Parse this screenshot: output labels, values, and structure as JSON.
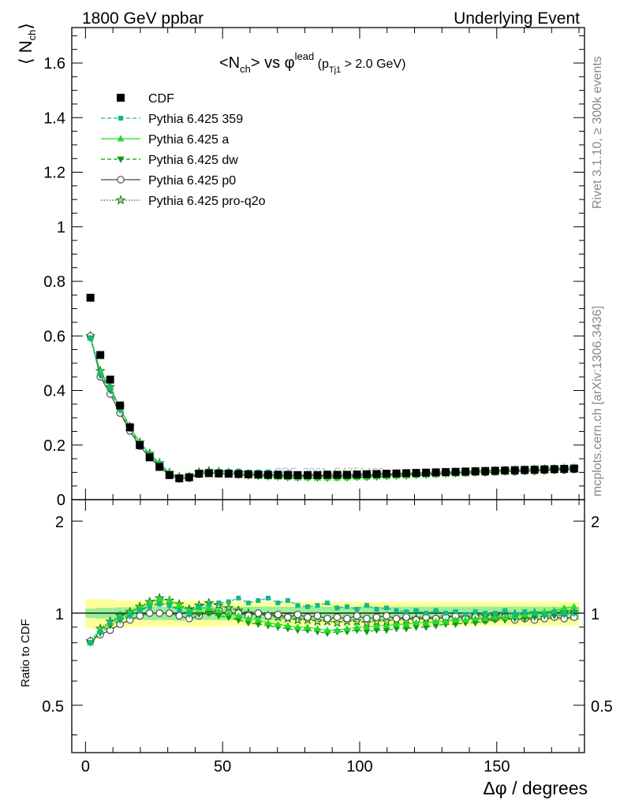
{
  "header": {
    "left": "1800 GeV ppbar",
    "right": "Underlying Event"
  },
  "side_text": {
    "rivet": "Rivet 3.1.10, ≥ 300k events",
    "mcplots": "mcplots.cern.ch [arXiv:1306.3436]"
  },
  "watermark": "CDF_2001_S4751469",
  "chart_data": [
    {
      "type": "scatter",
      "panel": "main",
      "title_parts": {
        "a": "<N",
        "a_sub": "ch",
        "b": "> vs φ",
        "b_sup": "lead",
        "c": " (p",
        "c_sub": "Tj1",
        "d": " > 2.0 GeV)"
      },
      "ylabel_parts": {
        "open": "⟨ N",
        "sub": "ch",
        "close": "⟩"
      },
      "xlim": [
        -5,
        182
      ],
      "ylim": [
        0,
        1.73
      ],
      "yticks": [
        0,
        0.2,
        0.4,
        0.6,
        0.8,
        1,
        1.2,
        1.4,
        1.6
      ],
      "ytick_labels": [
        "0",
        "0.2",
        "0.4",
        "0.6",
        "0.8",
        "1",
        "1.2",
        "1.4",
        "1.6"
      ],
      "x": [
        1.8,
        5.4,
        9.0,
        12.6,
        16.2,
        19.8,
        23.4,
        27.0,
        30.6,
        34.2,
        37.8,
        41.4,
        45.0,
        48.6,
        52.2,
        55.8,
        59.4,
        63.0,
        66.6,
        70.2,
        73.8,
        77.4,
        81.0,
        84.6,
        88.2,
        91.8,
        95.4,
        99.0,
        102.6,
        106.2,
        109.8,
        113.4,
        117.0,
        120.6,
        124.2,
        127.8,
        131.4,
        135.0,
        138.6,
        142.2,
        145.8,
        149.4,
        153.0,
        156.6,
        160.2,
        163.8,
        167.4,
        171.0,
        174.6,
        178.2
      ],
      "series": [
        {
          "name": "CDF",
          "color": "#000000",
          "marker": "square",
          "line": "none",
          "values": [
            0.74,
            0.53,
            0.44,
            0.345,
            0.265,
            0.2,
            0.155,
            0.12,
            0.09,
            0.078,
            0.082,
            0.095,
            0.097,
            0.096,
            0.095,
            0.094,
            0.093,
            0.092,
            0.091,
            0.091,
            0.09,
            0.09,
            0.09,
            0.09,
            0.091,
            0.091,
            0.091,
            0.092,
            0.093,
            0.094,
            0.095,
            0.096,
            0.097,
            0.098,
            0.099,
            0.1,
            0.101,
            0.102,
            0.103,
            0.104,
            0.105,
            0.106,
            0.107,
            0.108,
            0.109,
            0.11,
            0.111,
            0.112,
            0.113,
            0.114
          ]
        },
        {
          "name": "Pythia 6.425 359",
          "color": "#11b88c",
          "marker": "square",
          "line": "dashed",
          "ratio": [
            0.8,
            0.87,
            0.93,
            0.96,
            0.98,
            1.02,
            1.05,
            1.07,
            1.06,
            1.02,
            1.0,
            1.05,
            1.07,
            1.08,
            1.09,
            1.12,
            1.08,
            1.1,
            1.12,
            1.08,
            1.1,
            1.06,
            1.05,
            1.06,
            1.08,
            1.04,
            1.05,
            1.03,
            1.06,
            1.03,
            1.04,
            1.02,
            1.01,
            1.02,
            1.0,
            1.02,
            1.0,
            1.01,
            0.99,
            1.01,
            1.0,
            1.0,
            1.02,
            0.99,
            1.01,
            1.0,
            0.99,
            1.01,
            1.0,
            1.0
          ]
        },
        {
          "name": "Pythia 6.425 a",
          "color": "#22dd22",
          "marker": "triangle-up",
          "line": "solid",
          "ratio": [
            0.8,
            0.88,
            0.93,
            0.97,
            1.0,
            1.04,
            1.08,
            1.11,
            1.1,
            1.06,
            1.02,
            1.04,
            1.04,
            1.02,
            1.0,
            0.98,
            0.96,
            0.95,
            0.93,
            0.92,
            0.91,
            0.9,
            0.9,
            0.89,
            0.88,
            0.88,
            0.89,
            0.9,
            0.9,
            0.91,
            0.91,
            0.92,
            0.92,
            0.93,
            0.93,
            0.94,
            0.94,
            0.95,
            0.95,
            0.96,
            0.96,
            0.97,
            0.97,
            0.98,
            0.99,
            1.0,
            1.01,
            1.02,
            1.04,
            1.05
          ]
        },
        {
          "name": "Pythia 6.425 dw",
          "color": "#119911",
          "marker": "triangle-down",
          "line": "dashed",
          "ratio": [
            0.8,
            0.86,
            0.91,
            0.95,
            0.98,
            1.02,
            1.06,
            1.08,
            1.06,
            1.03,
            0.99,
            0.99,
            1.0,
            0.98,
            0.97,
            0.95,
            0.93,
            0.92,
            0.91,
            0.9,
            0.89,
            0.88,
            0.88,
            0.87,
            0.86,
            0.87,
            0.87,
            0.88,
            0.87,
            0.88,
            0.88,
            0.89,
            0.89,
            0.9,
            0.9,
            0.91,
            0.92,
            0.92,
            0.93,
            0.93,
            0.94,
            0.95,
            0.95,
            0.96,
            0.96,
            0.97,
            0.98,
            0.98,
            0.99,
            1.0
          ]
        },
        {
          "name": "Pythia 6.425 p0",
          "color": "#444444",
          "marker": "circle-open",
          "line": "solid",
          "ratio": [
            0.81,
            0.85,
            0.88,
            0.92,
            0.95,
            0.98,
            1.0,
            1.0,
            1.0,
            0.98,
            0.96,
            0.98,
            1.01,
            1.02,
            1.0,
            1.0,
            0.98,
            1.0,
            0.98,
            0.99,
            0.97,
            0.99,
            0.97,
            0.98,
            0.96,
            0.97,
            0.96,
            0.98,
            0.96,
            0.97,
            0.98,
            0.96,
            0.97,
            0.95,
            0.97,
            0.96,
            0.97,
            0.98,
            0.96,
            0.97,
            0.95,
            0.96,
            0.97,
            0.95,
            0.96,
            0.95,
            0.96,
            0.97,
            0.96,
            0.97
          ]
        },
        {
          "name": "Pythia 6.425 pro-q2o",
          "color": "#117711",
          "marker": "star-open",
          "line": "dotted",
          "ratio": [
            0.81,
            0.89,
            0.94,
            0.98,
            1.01,
            1.05,
            1.09,
            1.12,
            1.1,
            1.07,
            1.03,
            1.06,
            1.08,
            1.06,
            1.04,
            1.02,
            1.0,
            0.99,
            0.98,
            0.97,
            0.96,
            0.95,
            0.95,
            0.94,
            0.94,
            0.93,
            0.94,
            0.94,
            0.93,
            0.94,
            0.94,
            0.95,
            0.95,
            0.96,
            0.96,
            0.96,
            0.97,
            0.97,
            0.97,
            0.98,
            0.98,
            0.98,
            0.99,
            0.99,
            0.99,
            1.0,
            1.0,
            1.0,
            1.01,
            1.01
          ]
        }
      ],
      "legend_position": "top-left"
    },
    {
      "type": "line",
      "panel": "ratio",
      "ylabel": "Ratio to CDF",
      "xlabel_parts": {
        "symbol": "Δφ",
        "text": " / degrees"
      },
      "ylim": [
        0.35,
        2.35
      ],
      "yticks": [
        0.5,
        1,
        2
      ],
      "ytick_labels": [
        "0.5",
        "1",
        "2"
      ],
      "xticks": [
        0,
        50,
        100,
        150
      ],
      "xtick_labels": [
        "0",
        "50",
        "100",
        "150"
      ],
      "reference_line": 1.0,
      "stat_band_halfwidth": [
        0.035,
        0.04,
        0.04,
        0.045,
        0.045,
        0.05,
        0.05,
        0.05,
        0.05,
        0.055,
        0.05,
        0.05,
        0.05,
        0.05,
        0.05,
        0.05,
        0.05,
        0.05,
        0.05,
        0.05,
        0.05,
        0.05,
        0.05,
        0.05,
        0.05,
        0.05,
        0.05,
        0.05,
        0.05,
        0.05,
        0.05,
        0.05,
        0.05,
        0.05,
        0.05,
        0.05,
        0.05,
        0.05,
        0.05,
        0.05,
        0.05,
        0.05,
        0.05,
        0.05,
        0.05,
        0.05,
        0.05,
        0.05,
        0.05,
        0.05
      ],
      "total_band_halfwidth": [
        0.11,
        0.11,
        0.11,
        0.1,
        0.1,
        0.1,
        0.095,
        0.095,
        0.095,
        0.095,
        0.1,
        0.1,
        0.1,
        0.095,
        0.095,
        0.09,
        0.09,
        0.09,
        0.09,
        0.09,
        0.09,
        0.09,
        0.09,
        0.09,
        0.09,
        0.09,
        0.09,
        0.09,
        0.09,
        0.09,
        0.09,
        0.09,
        0.09,
        0.09,
        0.09,
        0.09,
        0.09,
        0.09,
        0.09,
        0.09,
        0.09,
        0.09,
        0.09,
        0.09,
        0.09,
        0.09,
        0.09,
        0.09,
        0.09,
        0.09
      ],
      "band_colors": {
        "stat": "#99ee99",
        "total": "#ffff99"
      }
    }
  ]
}
